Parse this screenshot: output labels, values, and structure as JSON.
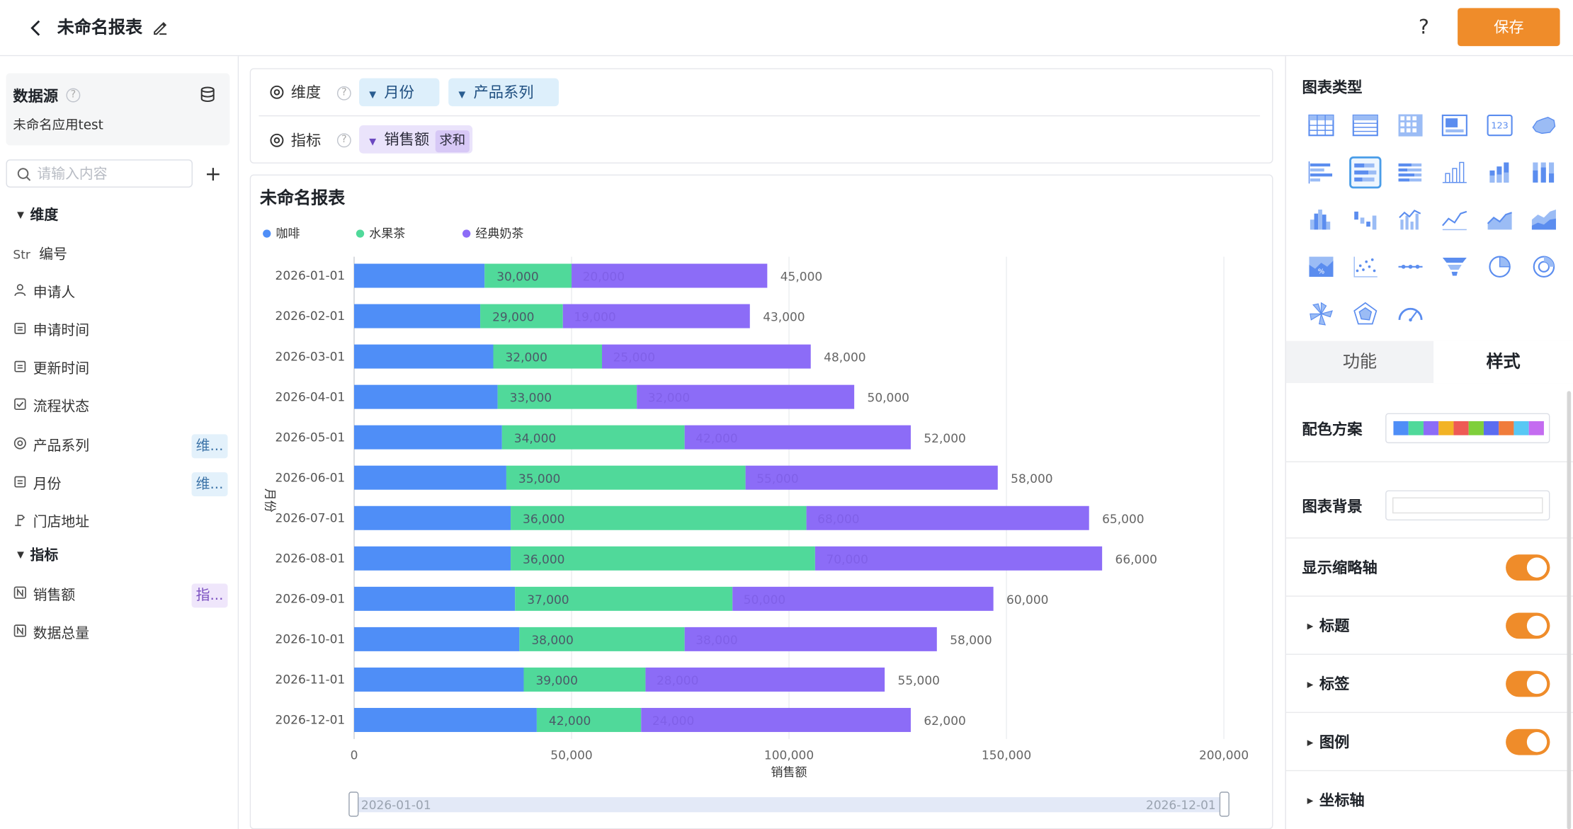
{
  "header": {
    "title": "未命名报表",
    "help_glyph": "?",
    "save_label": "保存"
  },
  "sidebar": {
    "datasource_title": "数据源",
    "datasource_app": "未命名应用test",
    "search_placeholder": "请输入内容",
    "dimension_section": "维度",
    "metric_section": "指标",
    "dimensions": [
      {
        "type_icon": "Str",
        "label": "编号",
        "tag": ""
      },
      {
        "type_icon": "person",
        "label": "申请人",
        "tag": ""
      },
      {
        "type_icon": "calendar",
        "label": "申请时间",
        "tag": ""
      },
      {
        "type_icon": "calendar",
        "label": "更新时间",
        "tag": ""
      },
      {
        "type_icon": "checkbox",
        "label": "流程状态",
        "tag": ""
      },
      {
        "type_icon": "radio",
        "label": "产品系列",
        "tag": "维..."
      },
      {
        "type_icon": "calendar",
        "label": "月份",
        "tag": "维..."
      },
      {
        "type_icon": "location",
        "label": "门店地址",
        "tag": ""
      }
    ],
    "metrics": [
      {
        "type_icon": "N",
        "label": "销售额",
        "tag": "指..."
      },
      {
        "type_icon": "N",
        "label": "数据总量",
        "tag": ""
      }
    ]
  },
  "config": {
    "dimension_label": "维度",
    "metric_label": "指标",
    "dimension_pills": [
      "月份",
      "产品系列"
    ],
    "metric_pill": "销售额",
    "metric_agg": "求和"
  },
  "chart_card": {
    "title": "未命名报表"
  },
  "chart_data": {
    "type": "bar",
    "orientation": "horizontal",
    "stacked": true,
    "title": "未命名报表",
    "xlabel": "销售额",
    "ylabel": "月份",
    "xlim": [
      0,
      200000
    ],
    "x_ticks": [
      0,
      50000,
      100000,
      150000,
      200000
    ],
    "x_tick_labels": [
      "0",
      "50,000",
      "100,000",
      "150,000",
      "200,000"
    ],
    "grid": "vertical",
    "legend": "top-left",
    "categories": [
      "2026-01-01",
      "2026-02-01",
      "2026-03-01",
      "2026-04-01",
      "2026-05-01",
      "2026-06-01",
      "2026-07-01",
      "2026-08-01",
      "2026-09-01",
      "2026-10-01",
      "2026-11-01",
      "2026-12-01"
    ],
    "series": [
      {
        "name": "咖啡",
        "color": "#4f8ef7",
        "values": [
          30000,
          29000,
          32000,
          33000,
          34000,
          35000,
          36000,
          36000,
          37000,
          38000,
          39000,
          42000
        ]
      },
      {
        "name": "水果茶",
        "color": "#50d99a",
        "values": [
          20000,
          19000,
          25000,
          32000,
          42000,
          55000,
          68000,
          70000,
          50000,
          38000,
          28000,
          24000
        ]
      },
      {
        "name": "经典奶茶",
        "color": "#8c6cf7",
        "values": [
          45000,
          43000,
          48000,
          50000,
          52000,
          58000,
          65000,
          66000,
          60000,
          58000,
          55000,
          62000
        ]
      }
    ],
    "bar_labels": [
      [
        "30,000",
        "20,000",
        "45,000"
      ],
      [
        "29,000",
        "19,000",
        "43,000"
      ],
      [
        "32,000",
        "25,000",
        "48,000"
      ],
      [
        "33,000",
        "32,000",
        "50,000"
      ],
      [
        "34,000",
        "42,000",
        "52,000"
      ],
      [
        "35,000",
        "55,000",
        "58,000"
      ],
      [
        "36,000",
        "68,000",
        "65,000"
      ],
      [
        "36,000",
        "70,000",
        "66,000"
      ],
      [
        "37,000",
        "50,000",
        "60,000"
      ],
      [
        "38,000",
        "38,000",
        "58,000"
      ],
      [
        "39,000",
        "28,000",
        "55,000"
      ],
      [
        "42,000",
        "24,000",
        "62,000"
      ]
    ],
    "zoom_range": [
      "2026-01-01",
      "2026-12-01"
    ]
  },
  "right_panel": {
    "chart_type_title": "图表类型",
    "chart_types": [
      "table",
      "detail-table",
      "pivot-table",
      "kpi-card",
      "number-card",
      "map",
      "bar-h",
      "bar-h-stacked",
      "bar-h-percent",
      "column",
      "column-stacked",
      "column-percent",
      "histogram",
      "waterfall",
      "combo",
      "line",
      "area",
      "stacked-area",
      "percent-area",
      "scatter",
      "timeline",
      "funnel",
      "pie",
      "donut",
      "rose",
      "radar",
      "gauge"
    ],
    "selected_chart_type": "bar-h-stacked",
    "tab_function": "功能",
    "tab_style": "样式",
    "color_scheme_label": "配色方案",
    "color_scheme": [
      "#4f8ef7",
      "#50d99a",
      "#8c6cf7",
      "#f2b325",
      "#ee5a55",
      "#7fcf3b",
      "#5b6cf0",
      "#f07c3b",
      "#58c8f4",
      "#c46cf0"
    ],
    "chart_bg_label": "图表背景",
    "show_zoom_label": "显示缩略轴",
    "title_label": "标题",
    "data_label_label": "标签",
    "legend_label": "图例",
    "axis_label": "坐标轴",
    "toggles": {
      "show_zoom": true,
      "title": true,
      "data_label": true,
      "legend": true
    }
  }
}
